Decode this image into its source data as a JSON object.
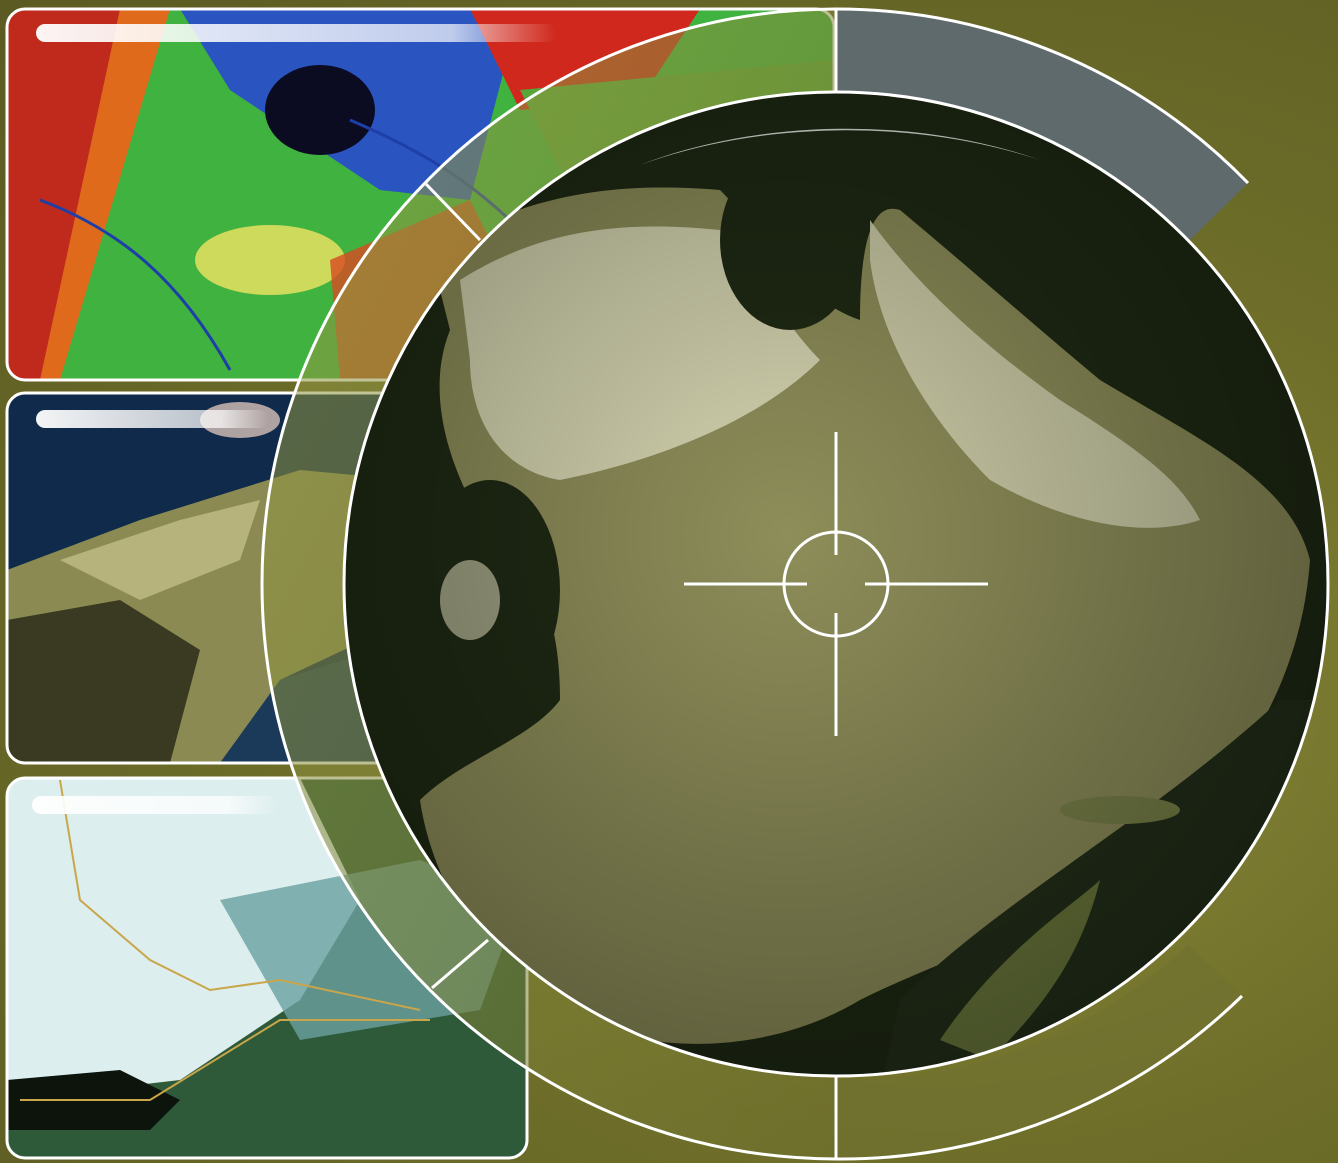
{
  "composition": {
    "colors": {
      "background": "#727230",
      "frame_stroke": "#ffffff",
      "radar_panel": "#5f6a6c",
      "globe_land": "#8e8e5a",
      "globe_snow": "#d4d4b0",
      "globe_water": "#1f2a14",
      "crosshair": "#ffffff"
    },
    "panels": [
      {
        "name": "false-color-satellite-panel",
        "palette": [
          "#c02a1c",
          "#e06a1c",
          "#3fb240",
          "#2a54c0",
          "#0b0b22",
          "#e8e060"
        ]
      },
      {
        "name": "relief-terrain-panel",
        "palette": [
          "#0f2a4a",
          "#8a8a52",
          "#3a3a22",
          "#c9c68f"
        ]
      },
      {
        "name": "cloud-cover-panel",
        "palette": [
          "#ddeeee",
          "#6aa0a0",
          "#2e5a3a",
          "#0c140c",
          "#c9a64a"
        ]
      }
    ],
    "icons": [
      "crosshair-icon"
    ]
  }
}
